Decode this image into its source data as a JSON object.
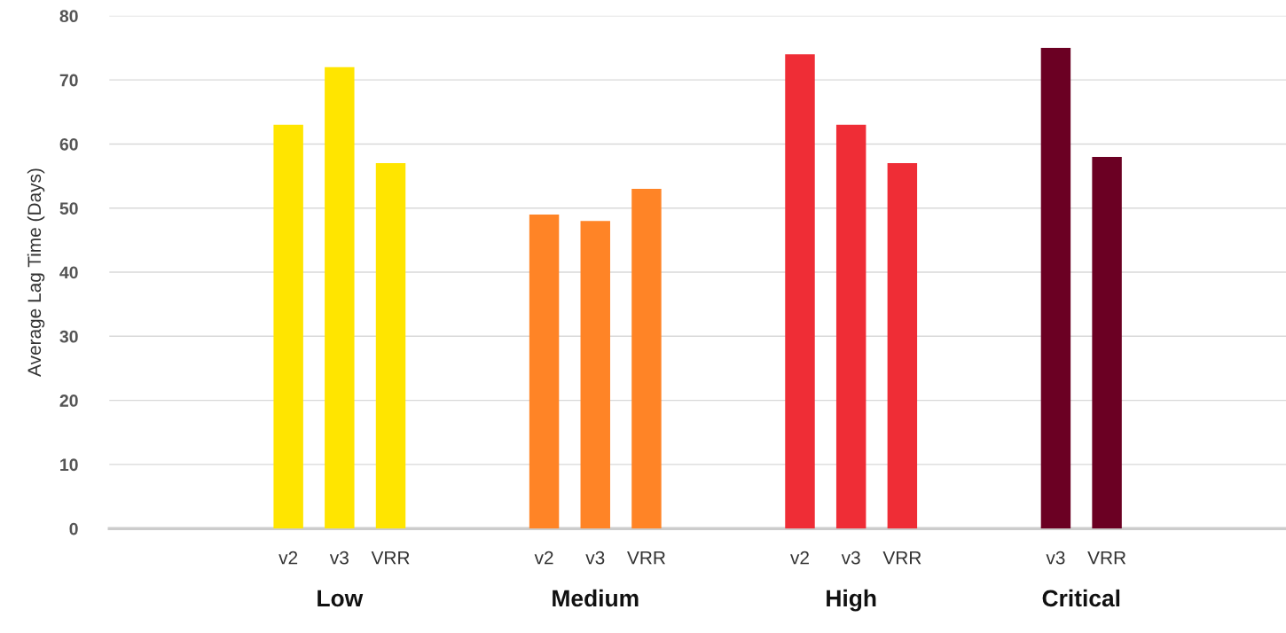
{
  "chart_data": {
    "type": "bar",
    "ylabel": "Average Lag Time (Days)",
    "categories": [
      null,
      null,
      null,
      "v2",
      "v3",
      "VRR",
      null,
      null,
      "v2",
      "v3",
      "VRR",
      null,
      null,
      "v2",
      "v3",
      "VRR",
      null,
      null,
      "v3",
      "VRR",
      null,
      null,
      null
    ],
    "values": [
      null,
      null,
      null,
      63,
      72,
      57,
      null,
      null,
      49,
      48,
      53,
      null,
      null,
      74,
      63,
      57,
      null,
      null,
      75,
      58,
      null,
      null,
      null
    ],
    "colors": [
      "#ffe500",
      "#ffe500",
      "#ffe500",
      "#ffe500",
      "#ffe500",
      "#ffe500",
      "#ff8426",
      "#ff8426",
      "#ff8426",
      "#ff8426",
      "#ff8426",
      "#ef2d36",
      "#ef2d36",
      "#ef2d36",
      "#ef2d36",
      "#ef2d36",
      "#6b0023",
      "#6b0023",
      "#6b0023",
      "#6b0023",
      "#6b0023",
      "#6b0023",
      "#6b0023"
    ],
    "ylim": [
      0,
      80
    ],
    "yticks": [
      0,
      10,
      20,
      30,
      40,
      50,
      60,
      70,
      80
    ],
    "grid": "y",
    "annotations": [
      "Low",
      "Medium",
      "High",
      "Critical"
    ]
  }
}
